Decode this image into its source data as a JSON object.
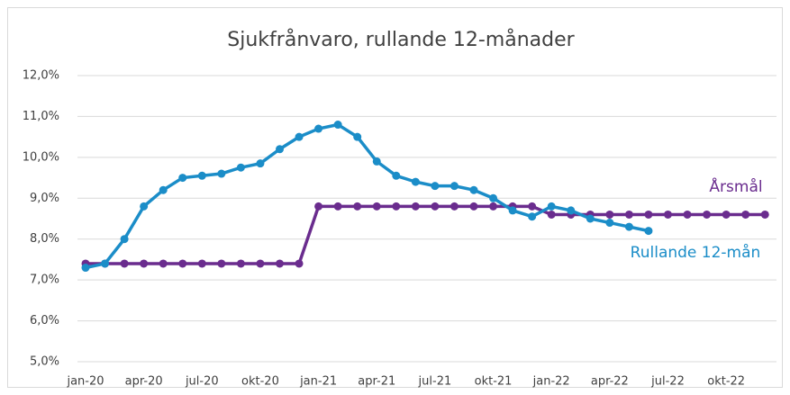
{
  "chart_data": {
    "type": "line",
    "title": "Sjukfrånvaro, rullande 12-månader",
    "categories": [
      "jan-20",
      null,
      null,
      "apr-20",
      null,
      null,
      "jul-20",
      null,
      null,
      "okt-20",
      null,
      null,
      "jan-21",
      null,
      null,
      "apr-21",
      null,
      null,
      "jul-21",
      null,
      null,
      "okt-21",
      null,
      null,
      "jan-22",
      null,
      null,
      "apr-22",
      null,
      null,
      "jul-22",
      null,
      null,
      "okt-22",
      null,
      null
    ],
    "series": [
      {
        "name": "Rullande 12-mån",
        "color": "#1b8dc8",
        "values": [
          7.3,
          7.4,
          8.0,
          8.8,
          9.2,
          9.5,
          9.55,
          9.6,
          9.75,
          9.85,
          10.2,
          10.5,
          10.7,
          10.8,
          10.5,
          9.9,
          9.55,
          9.4,
          9.3,
          9.3,
          9.2,
          9.0,
          8.7,
          8.55,
          8.8,
          8.7,
          8.5,
          8.4,
          8.3,
          8.2,
          null,
          null,
          null,
          null,
          null,
          null
        ]
      },
      {
        "name": "Årsmål",
        "color": "#6a2c8e",
        "values": [
          7.4,
          7.4,
          7.4,
          7.4,
          7.4,
          7.4,
          7.4,
          7.4,
          7.4,
          7.4,
          7.4,
          7.4,
          8.8,
          8.8,
          8.8,
          8.8,
          8.8,
          8.8,
          8.8,
          8.8,
          8.8,
          8.8,
          8.8,
          8.8,
          8.6,
          8.6,
          8.6,
          8.6,
          8.6,
          8.6,
          8.6,
          8.6,
          8.6,
          8.6,
          8.6,
          8.6
        ]
      }
    ],
    "ylim": [
      5,
      12
    ],
    "yticks": [
      {
        "value": 5,
        "label": "5,0%"
      },
      {
        "value": 6,
        "label": "6,0%"
      },
      {
        "value": 7,
        "label": "7,0%"
      },
      {
        "value": 8,
        "label": "8,0%"
      },
      {
        "value": 9,
        "label": "9,0%"
      },
      {
        "value": 10,
        "label": "10,0%"
      },
      {
        "value": 11,
        "label": "11,0%"
      },
      {
        "value": 12,
        "label": "12,0%"
      }
    ],
    "grid": true
  }
}
